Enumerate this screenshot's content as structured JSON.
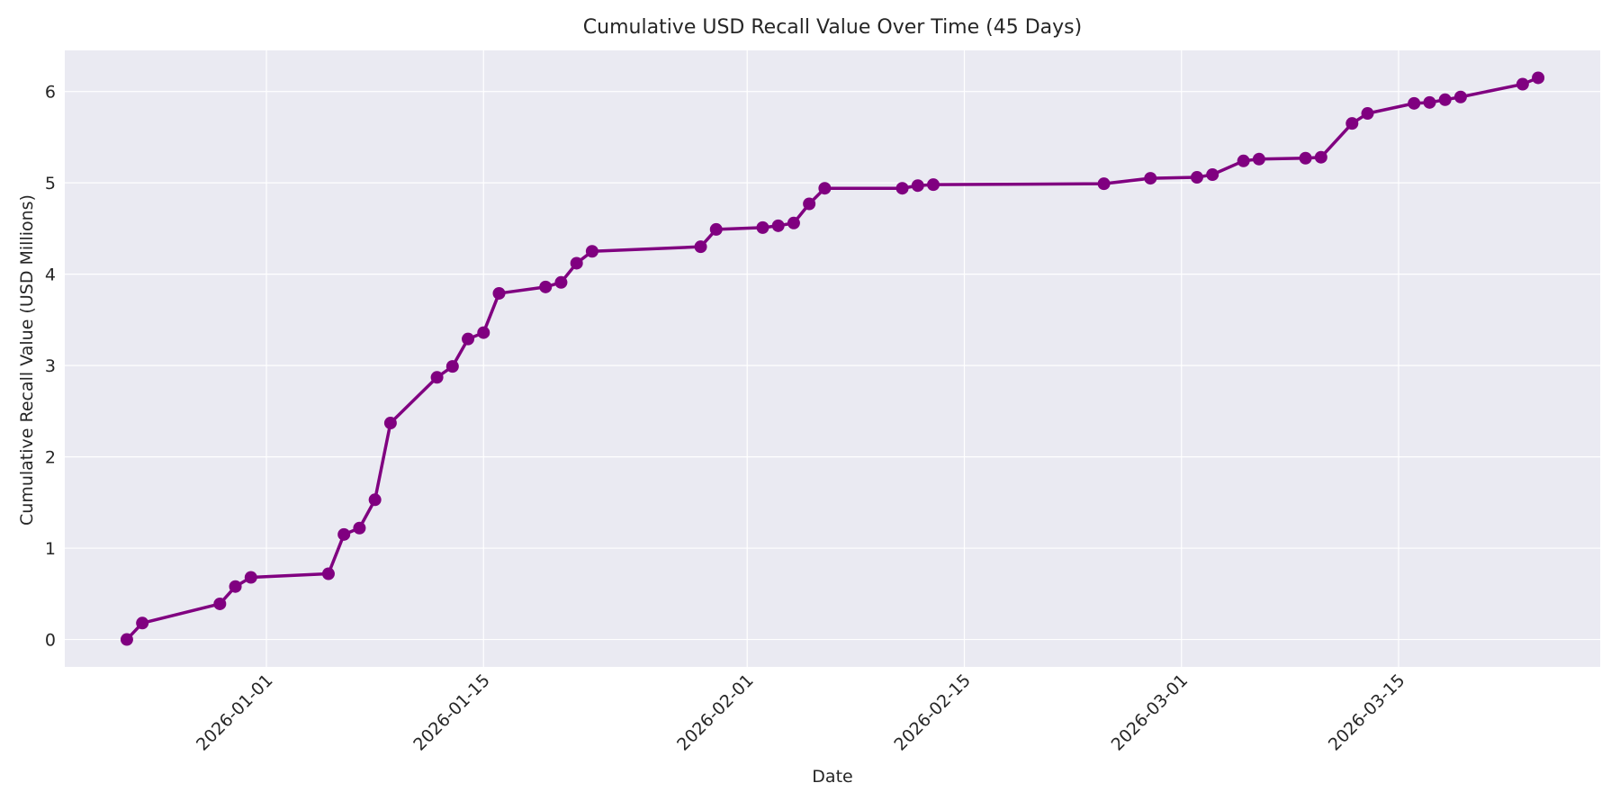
{
  "chart_data": {
    "type": "line",
    "title": "Cumulative USD Recall Value Over Time (45 Days)",
    "xlabel": "Date",
    "ylabel": "Cumulative Recall Value (USD Millions)",
    "ylim": [
      -0.3,
      6.45
    ],
    "yticks": [
      0,
      1,
      2,
      3,
      4,
      5,
      6
    ],
    "xticks": [
      "2026-01-01",
      "2026-01-15",
      "2026-02-01",
      "2026-02-15",
      "2026-03-01",
      "2026-03-15"
    ],
    "xlim": [
      "2025-12-19",
      "2026-03-28"
    ],
    "grid": true,
    "legend": null,
    "series": [
      {
        "name": "Cumulative Recall Value",
        "color": "#800080",
        "marker": "circle",
        "x": [
          "2025-12-23",
          "2025-12-24",
          "2025-12-29",
          "2025-12-30",
          "2025-12-31",
          "2026-01-05",
          "2026-01-06",
          "2026-01-07",
          "2026-01-08",
          "2026-01-09",
          "2026-01-12",
          "2026-01-13",
          "2026-01-14",
          "2026-01-15",
          "2026-01-16",
          "2026-01-19",
          "2026-01-20",
          "2026-01-21",
          "2026-01-22",
          "2026-01-29",
          "2026-01-30",
          "2026-02-02",
          "2026-02-03",
          "2026-02-04",
          "2026-02-05",
          "2026-02-06",
          "2026-02-11",
          "2026-02-12",
          "2026-02-13",
          "2026-02-24",
          "2026-02-27",
          "2026-03-02",
          "2026-03-03",
          "2026-03-05",
          "2026-03-06",
          "2026-03-09",
          "2026-03-10",
          "2026-03-12",
          "2026-03-13",
          "2026-03-16",
          "2026-03-17",
          "2026-03-18",
          "2026-03-19",
          "2026-03-23",
          "2026-03-24"
        ],
        "values": [
          0.0,
          0.18,
          0.39,
          0.58,
          0.68,
          0.72,
          1.15,
          1.22,
          1.53,
          2.37,
          2.87,
          2.99,
          3.29,
          3.36,
          3.79,
          3.86,
          3.91,
          4.12,
          4.25,
          4.3,
          4.49,
          4.51,
          4.53,
          4.56,
          4.77,
          4.94,
          4.94,
          4.97,
          4.98,
          4.99,
          5.05,
          5.06,
          5.09,
          5.24,
          5.26,
          5.27,
          5.28,
          5.65,
          5.76,
          5.87,
          5.88,
          5.91,
          5.94,
          6.08,
          6.15
        ]
      }
    ]
  },
  "style": {
    "plot_bg": "#eaeaf2",
    "grid_color": "#ffffff",
    "line_color": "#800080",
    "text_color": "#262626"
  }
}
